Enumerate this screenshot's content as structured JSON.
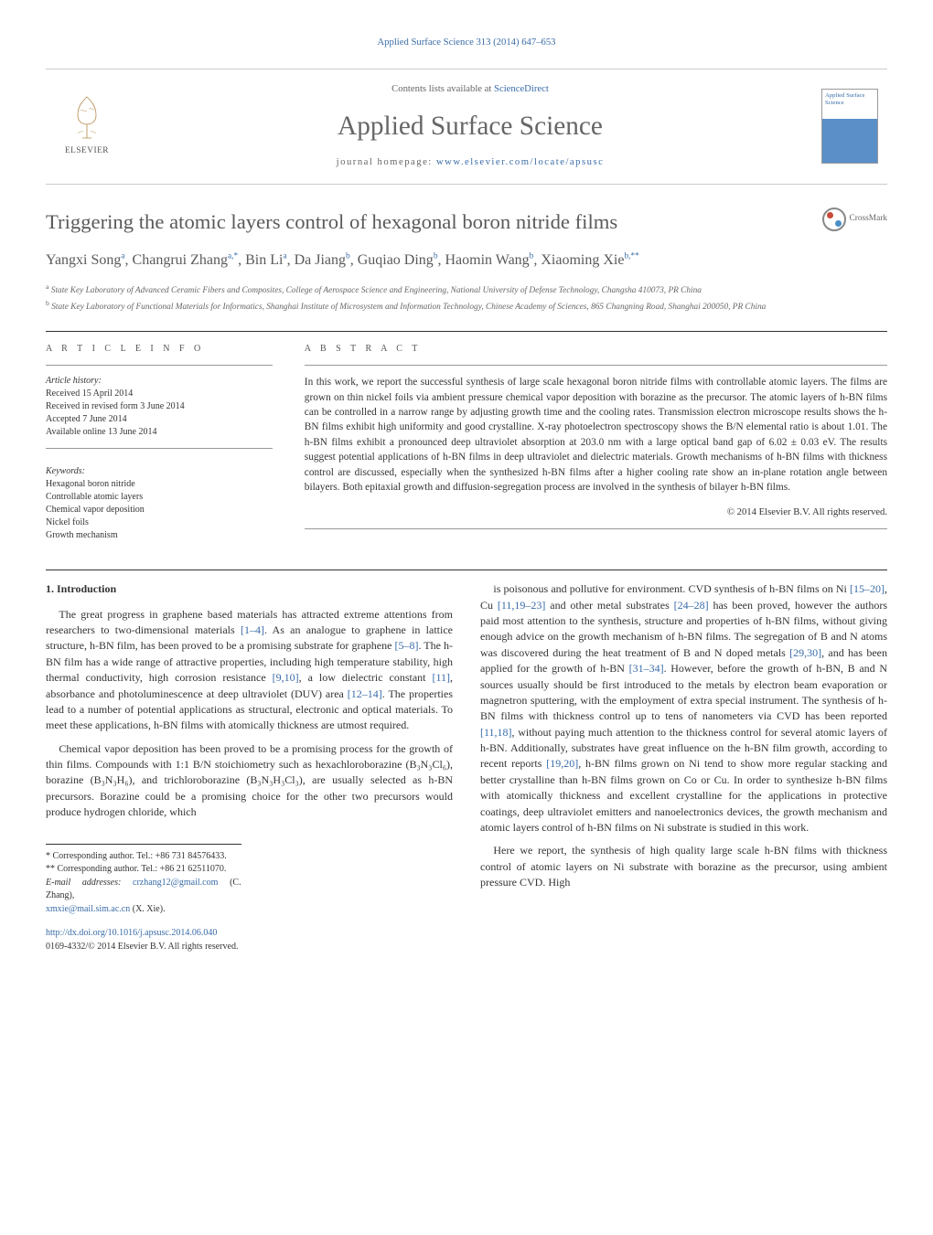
{
  "journal_ref": "Applied Surface Science 313 (2014) 647–653",
  "header": {
    "contents_prefix": "Contents lists available at ",
    "contents_link": "ScienceDirect",
    "journal_title": "Applied Surface Science",
    "homepage_prefix": "journal homepage: ",
    "homepage_link": "www.elsevier.com/locate/apsusc",
    "publisher_name": "ELSEVIER",
    "cover_text": "Applied Surface Science"
  },
  "crossmark_label": "CrossMark",
  "title": "Triggering the atomic layers control of hexagonal boron nitride films",
  "authors_html": "Yangxi Song<sup>a</sup>, Changrui Zhang<sup>a,*</sup>, Bin Li<sup>a</sup>, Da Jiang<sup>b</sup>, Guqiao Ding<sup>b</sup>, Haomin Wang<sup>b</sup>, Xiaoming Xie<sup>b,**</sup>",
  "affiliations": {
    "a": "State Key Laboratory of Advanced Ceramic Fibers and Composites, College of Aerospace Science and Engineering, National University of Defense Technology, Changsha 410073, PR China",
    "b": "State Key Laboratory of Functional Materials for Informatics, Shanghai Institute of Microsystem and Information Technology, Chinese Academy of Sciences, 865 Changning Road, Shanghai 200050, PR China"
  },
  "article_info": {
    "heading": "A R T I C L E   I N F O",
    "history_label": "Article history:",
    "history": [
      "Received 15 April 2014",
      "Received in revised form 3 June 2014",
      "Accepted 7 June 2014",
      "Available online 13 June 2014"
    ],
    "keywords_label": "Keywords:",
    "keywords": [
      "Hexagonal boron nitride",
      "Controllable atomic layers",
      "Chemical vapor deposition",
      "Nickel foils",
      "Growth mechanism"
    ]
  },
  "abstract": {
    "heading": "A B S T R A C T",
    "text": "In this work, we report the successful synthesis of large scale hexagonal boron nitride films with controllable atomic layers. The films are grown on thin nickel foils via ambient pressure chemical vapor deposition with borazine as the precursor. The atomic layers of h-BN films can be controlled in a narrow range by adjusting growth time and the cooling rates. Transmission electron microscope results shows the h-BN films exhibit high uniformity and good crystalline. X-ray photoelectron spectroscopy shows the B/N elemental ratio is about 1.01. The h-BN films exhibit a pronounced deep ultraviolet absorption at 203.0 nm with a large optical band gap of 6.02 ± 0.03 eV. The results suggest potential applications of h-BN films in deep ultraviolet and dielectric materials. Growth mechanisms of h-BN films with thickness control are discussed, especially when the synthesized h-BN films after a higher cooling rate show an in-plane rotation angle between bilayers. Both epitaxial growth and diffusion-segregation process are involved in the synthesis of bilayer h-BN films.",
    "copyright": "© 2014 Elsevier B.V. All rights reserved."
  },
  "body": {
    "section_num": "1.",
    "section_title": "Introduction",
    "col1_p1": "The great progress in graphene based materials has attracted extreme attentions from researchers to two-dimensional materials [1–4]. As an analogue to graphene in lattice structure, h-BN film, has been proved to be a promising substrate for graphene [5–8]. The h-BN film has a wide range of attractive properties, including high temperature stability, high thermal conductivity, high corrosion resistance [9,10], a low dielectric constant [11], absorbance and photoluminescence at deep ultraviolet (DUV) area [12–14]. The properties lead to a number of potential applications as structural, electronic and optical materials. To meet these applications, h-BN films with atomically thickness are utmost required.",
    "col1_p2": "Chemical vapor deposition has been proved to be a promising process for the growth of thin films. Compounds with 1:1 B/N stoichiometry such as hexachloroborazine (B₃N₃Cl₆), borazine (B₃N₃H₆), and trichloroborazine (B₃N₃H₃Cl₃), are usually selected as h-BN precursors. Borazine could be a promising choice for the other two precursors would produce hydrogen chloride, which",
    "col2_p1": "is poisonous and pollutive for environment. CVD synthesis of h-BN films on Ni [15–20], Cu [11,19–23] and other metal substrates [24–28] has been proved, however the authors paid most attention to the synthesis, structure and properties of h-BN films, without giving enough advice on the growth mechanism of h-BN films. The segregation of B and N atoms was discovered during the heat treatment of B and N doped metals [29,30], and has been applied for the growth of h-BN [31–34]. However, before the growth of h-BN, B and N sources usually should be first introduced to the metals by electron beam evaporation or magnetron sputtering, with the employment of extra special instrument. The synthesis of h-BN films with thickness control up to tens of nanometers via CVD has been reported [11,18], without paying much attention to the thickness control for several atomic layers of h-BN. Additionally, substrates have great influence on the h-BN film growth, according to recent reports [19,20], h-BN films grown on Ni tend to show more regular stacking and better crystalline than h-BN films grown on Co or Cu. In order to synthesize h-BN films with atomically thickness and excellent crystalline for the applications in protective coatings, deep ultraviolet emitters and nanoelectronics devices, the growth mechanism and atomic layers control of h-BN films on Ni substrate is studied in this work.",
    "col2_p2": "Here we report, the synthesis of high quality large scale h-BN films with thickness control of atomic layers on Ni substrate with borazine as the precursor, using ambient pressure CVD. High"
  },
  "footnotes": {
    "corr1": "* Corresponding author. Tel.: +86 731 84576433.",
    "corr2": "** Corresponding author. Tel.: +86 21 62511070.",
    "email_label": "E-mail addresses: ",
    "email1": "crzhang12@gmail.com",
    "email1_suffix": " (C. Zhang),",
    "email2": "xmxie@mail.sim.ac.cn",
    "email2_suffix": " (X. Xie)."
  },
  "doi": {
    "link": "http://dx.doi.org/10.1016/j.apsusc.2014.06.040",
    "issn_line": "0169-4332/© 2014 Elsevier B.V. All rights reserved."
  },
  "colors": {
    "link": "#3a6ca8",
    "text": "#333333",
    "muted": "#666666"
  }
}
